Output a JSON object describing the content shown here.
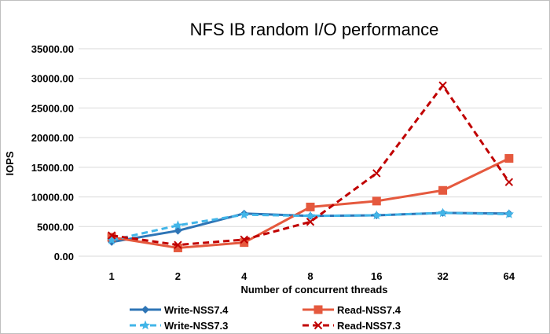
{
  "chart_data": {
    "type": "line",
    "title": "NFS IB random I/O performance",
    "xlabel": "Number of concurrent  threads",
    "ylabel": "IOPS",
    "categories": [
      "1",
      "2",
      "4",
      "8",
      "16",
      "32",
      "64"
    ],
    "ylim": [
      0,
      35000
    ],
    "yticks": [
      "0.00",
      "5000.00",
      "10000.00",
      "15000.00",
      "20000.00",
      "25000.00",
      "30000.00",
      "35000.00"
    ],
    "grid": true,
    "legend_position": "bottom",
    "series": [
      {
        "name": "Write-NSS7.4",
        "values": [
          2400,
          4300,
          7200,
          6800,
          6900,
          7300,
          7200
        ],
        "color": "#2e75b6",
        "style": "solid",
        "marker": "diamond"
      },
      {
        "name": "Read-NSS7.4",
        "values": [
          3200,
          1400,
          2300,
          8300,
          9300,
          11100,
          16500
        ],
        "color": "#e5593e",
        "style": "solid",
        "marker": "square"
      },
      {
        "name": "Write-NSS7.3",
        "values": [
          2700,
          5200,
          7000,
          6800,
          6900,
          7300,
          7100
        ],
        "color": "#41b5e8",
        "style": "dashed",
        "marker": "star"
      },
      {
        "name": "Read-NSS7.3",
        "values": [
          3500,
          1900,
          2800,
          5800,
          14000,
          28800,
          12500
        ],
        "color": "#c00000",
        "style": "dashed",
        "marker": "x"
      }
    ]
  }
}
